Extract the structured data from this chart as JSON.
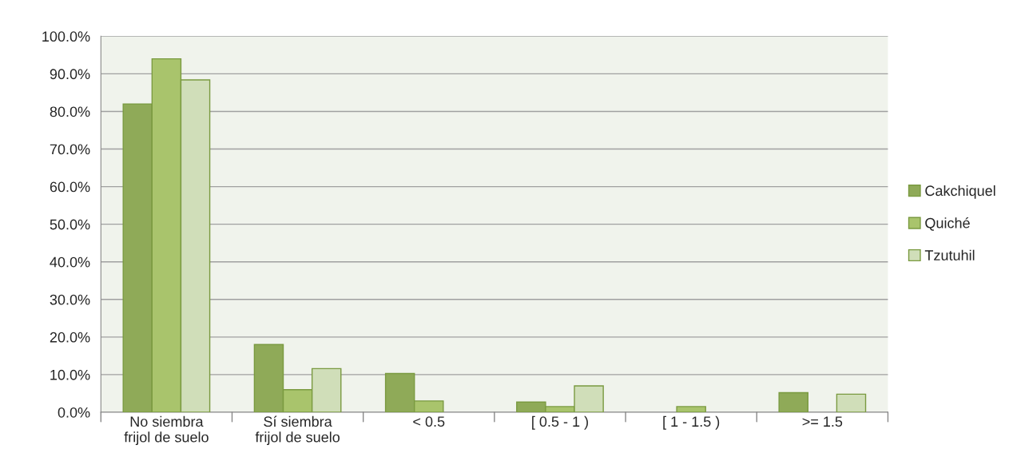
{
  "chart_data": {
    "type": "bar",
    "categories": [
      "No siembra\nfrijol de suelo",
      "Sí siembra\nfrijol de suelo",
      "< 0.5",
      "[ 0.5 - 1 )",
      "[ 1 - 1.5 )",
      ">= 1.5"
    ],
    "series": [
      {
        "name": "Cakchiquel",
        "color": "#8faa58",
        "values": [
          82.0,
          18.0,
          10.3,
          2.7,
          0,
          5.2
        ]
      },
      {
        "name": "Quiché",
        "color": "#a9c46c",
        "values": [
          94.0,
          6.0,
          3.0,
          1.5,
          1.5,
          0
        ]
      },
      {
        "name": "Tzutuhil",
        "color": "#d0deb9",
        "values": [
          88.4,
          11.6,
          0,
          7.0,
          0,
          4.8
        ]
      }
    ],
    "ylim": [
      0,
      100
    ],
    "yticks": [
      {
        "value": 0,
        "label": "0.0%"
      },
      {
        "value": 10,
        "label": "10.0%"
      },
      {
        "value": 20,
        "label": "20.0%"
      },
      {
        "value": 30,
        "label": "30.0%"
      },
      {
        "value": 40,
        "label": "40.0%"
      },
      {
        "value": 50,
        "label": "50.0%"
      },
      {
        "value": 60,
        "label": "60.0%"
      },
      {
        "value": 70,
        "label": "70.0%"
      },
      {
        "value": 80,
        "label": "80.0%"
      },
      {
        "value": 90,
        "label": "90.0%"
      },
      {
        "value": 100,
        "label": "100.0%"
      }
    ],
    "grid": "y",
    "legend": "right"
  }
}
